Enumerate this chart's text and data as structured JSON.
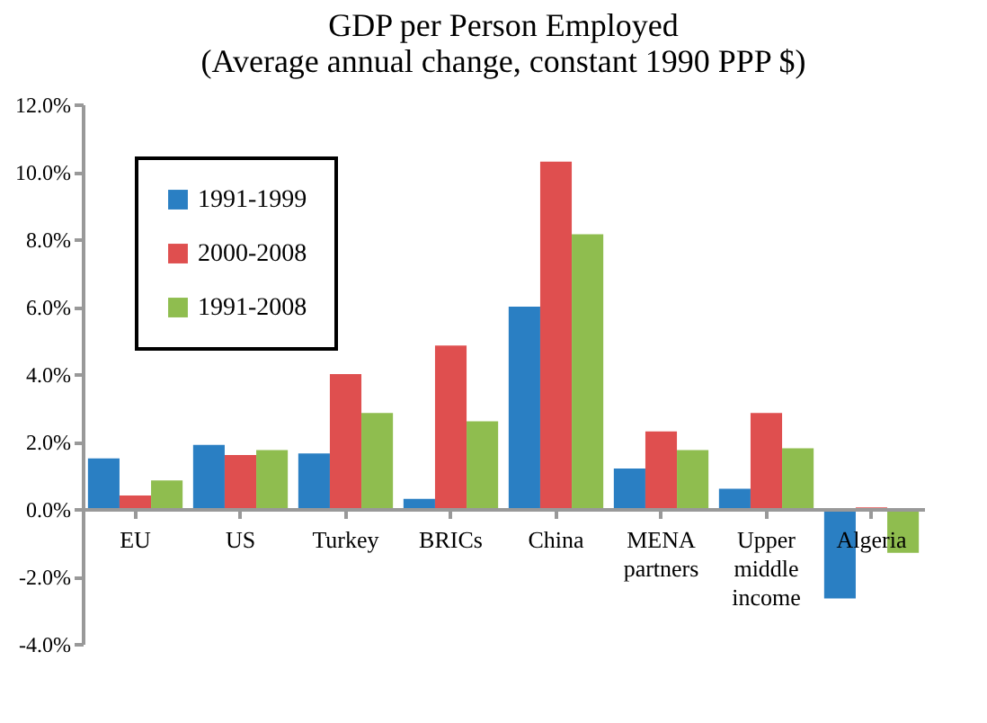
{
  "chart_data": {
    "type": "bar",
    "title": "GDP per Person Employed",
    "subtitle": "(Average annual change, constant 1990 PPP $)",
    "categories": [
      "EU",
      "US",
      "Turkey",
      "BRICs",
      "China",
      "MENA partners",
      "Upper middle income",
      "Algeria"
    ],
    "series": [
      {
        "name": "1991-1999",
        "color": "#2a7fc3",
        "values": [
          1.5,
          1.9,
          1.65,
          0.3,
          6.0,
          1.2,
          0.6,
          -2.65
        ]
      },
      {
        "name": "2000-2008",
        "color": "#df4f4f",
        "values": [
          0.4,
          1.6,
          4.0,
          4.85,
          10.3,
          2.3,
          2.85,
          0.05
        ]
      },
      {
        "name": "1991-2008",
        "color": "#8fbd4f",
        "values": [
          0.85,
          1.75,
          2.85,
          2.6,
          8.15,
          1.75,
          1.8,
          -1.3
        ]
      }
    ],
    "ylim": [
      -4,
      12
    ],
    "yticks": [
      {
        "value": -4,
        "label": "-4.0%"
      },
      {
        "value": -2,
        "label": "-2.0%"
      },
      {
        "value": 0,
        "label": "0.0%"
      },
      {
        "value": 2,
        "label": "2.0%"
      },
      {
        "value": 4,
        "label": "4.0%"
      },
      {
        "value": 6,
        "label": "6.0%"
      },
      {
        "value": 8,
        "label": "8.0%"
      },
      {
        "value": 10,
        "label": "10.0%"
      },
      {
        "value": 12,
        "label": "12.0%"
      }
    ],
    "grid": false,
    "legend": "top left"
  }
}
